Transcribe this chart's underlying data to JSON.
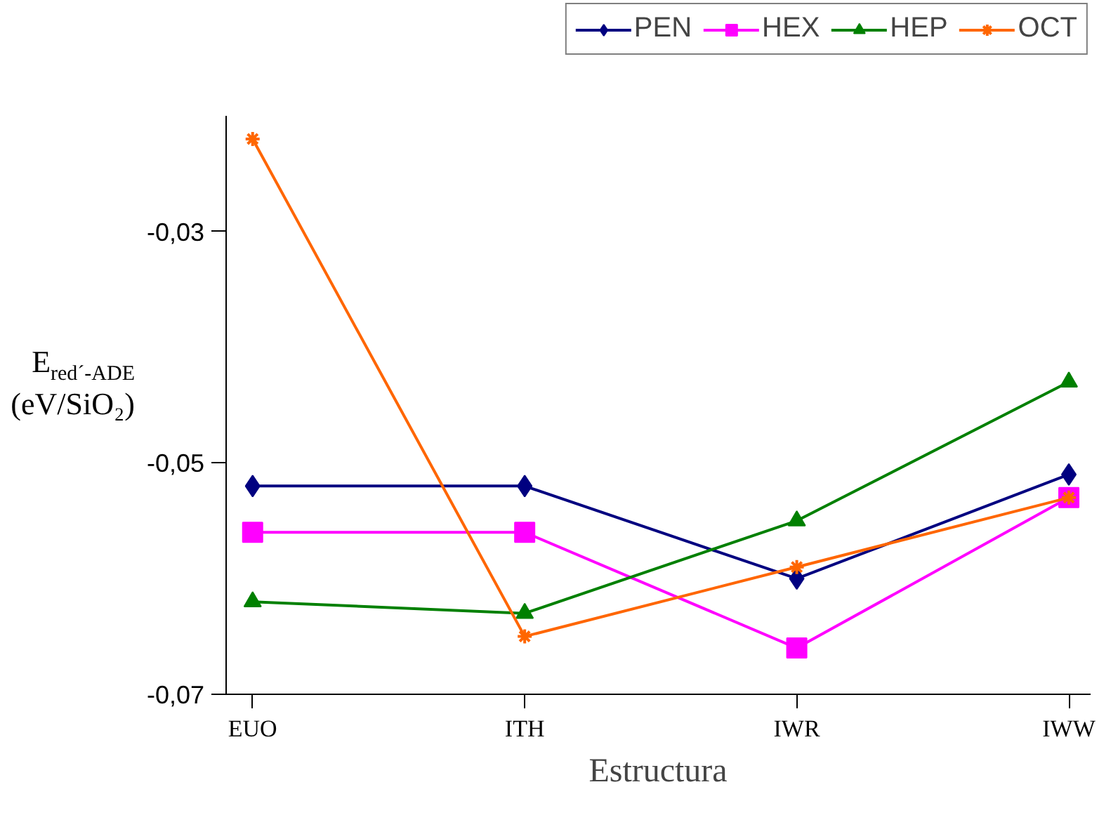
{
  "chart_data": {
    "type": "line",
    "xlabel": "Estructura",
    "ylabel": "E$_{red´-ADE}$ (eV/SiO₂)",
    "categories": [
      "EUO",
      "ITH",
      "IWR",
      "IWW"
    ],
    "ylim": [
      -0.07,
      -0.02
    ],
    "yticks": [
      {
        "value": -0.07,
        "label": "-0,07"
      },
      {
        "value": -0.05,
        "label": "-0,05"
      },
      {
        "value": -0.03,
        "label": "-0,03"
      }
    ],
    "grid": false,
    "legend": "top right",
    "line_style": "solid",
    "series": [
      {
        "name": "PEN",
        "color": "#000080",
        "marker": "diamond",
        "values": [
          -0.052,
          -0.052,
          -0.06,
          -0.051
        ]
      },
      {
        "name": "HEX",
        "color": "#ff00ff",
        "marker": "square",
        "values": [
          -0.056,
          -0.056,
          -0.066,
          -0.053
        ]
      },
      {
        "name": "HEP",
        "color": "#008000",
        "marker": "triangle",
        "values": [
          -0.062,
          -0.063,
          -0.055,
          -0.043
        ]
      },
      {
        "name": "OCT",
        "color": "#ff6600",
        "marker": "cross",
        "values": [
          -0.022,
          -0.065,
          -0.059,
          -0.053
        ]
      }
    ]
  }
}
